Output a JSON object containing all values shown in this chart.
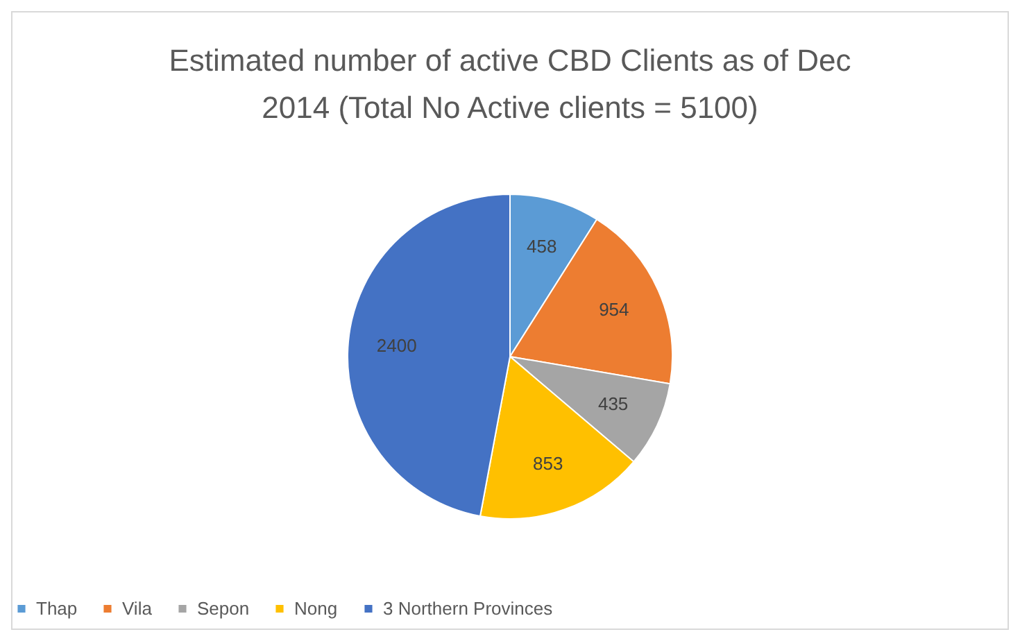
{
  "chart_data": {
    "type": "pie",
    "title": "Estimated number of active CBD Clients as of Dec 2014 (Total No Active clients = 5100)",
    "categories": [
      "Thap",
      "Vila",
      "Sepon",
      "Nong",
      "3 Northern Provinces"
    ],
    "values": [
      458,
      954,
      435,
      853,
      2400
    ],
    "colors": [
      "#5b9bd5",
      "#ed7d31",
      "#a5a5a5",
      "#ffc000",
      "#4472c4"
    ],
    "data_labels": true,
    "legend": "bottom"
  }
}
